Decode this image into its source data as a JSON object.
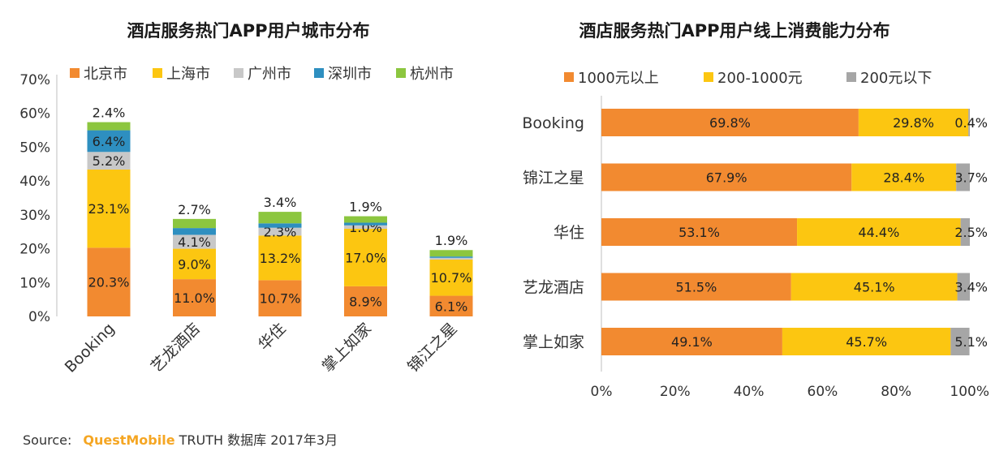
{
  "chart_data": [
    {
      "type": "bar",
      "stacked": true,
      "orientation": "vertical",
      "title": "酒店服务热门APP用户城市分布",
      "categories": [
        "Booking",
        "艺龙酒店",
        "华住",
        "掌上如家",
        "锦江之星"
      ],
      "series": [
        {
          "name": "北京市",
          "color": "#f28a30",
          "values": [
            20.3,
            11.0,
            10.7,
            8.9,
            6.1
          ],
          "labels": [
            "20.3%",
            "11.0%",
            "10.7%",
            "8.9%",
            "6.1%"
          ]
        },
        {
          "name": "上海市",
          "color": "#fcc611",
          "values": [
            23.1,
            9.0,
            13.2,
            17.0,
            10.7
          ],
          "labels": [
            "23.1%",
            "9.0%",
            "13.2%",
            "17.0%",
            "10.7%"
          ]
        },
        {
          "name": "广州市",
          "color": "#c8c8c8",
          "values": [
            5.2,
            4.1,
            2.3,
            1.0,
            0.5
          ],
          "labels": [
            "5.2%",
            "4.1%",
            "2.3%",
            "1.0%",
            ""
          ]
        },
        {
          "name": "深圳市",
          "color": "#2e8fc0",
          "values": [
            6.4,
            2.0,
            1.3,
            0.8,
            0.4
          ],
          "labels": [
            "6.4%",
            "",
            "",
            "",
            ""
          ]
        },
        {
          "name": "杭州市",
          "color": "#8cc63f",
          "values": [
            2.4,
            2.7,
            3.4,
            1.9,
            1.9
          ],
          "labels": [
            "2.4%",
            "2.7%",
            "3.4%",
            "1.9%",
            "1.9%"
          ]
        }
      ],
      "yticks": [
        "0%",
        "10%",
        "20%",
        "30%",
        "40%",
        "50%",
        "60%",
        "70%"
      ],
      "ylim": [
        0,
        70
      ],
      "legend": "top"
    },
    {
      "type": "bar",
      "stacked": true,
      "orientation": "horizontal",
      "title": "酒店服务热门APP用户线上消费能力分布",
      "categories": [
        "Booking",
        "锦江之星",
        "华住",
        "艺龙酒店",
        "掌上如家"
      ],
      "series": [
        {
          "name": "1000元以上",
          "color": "#f28a30",
          "values": [
            69.8,
            67.9,
            53.1,
            51.5,
            49.1
          ],
          "labels": [
            "69.8%",
            "67.9%",
            "53.1%",
            "51.5%",
            "49.1%"
          ]
        },
        {
          "name": "200-1000元",
          "color": "#fcc611",
          "values": [
            29.8,
            28.4,
            44.4,
            45.1,
            45.7
          ],
          "labels": [
            "29.8%",
            "28.4%",
            "44.4%",
            "45.1%",
            "45.7%"
          ]
        },
        {
          "name": "200元以下",
          "color": "#a6a6a6",
          "values": [
            0.4,
            3.7,
            2.5,
            3.4,
            5.1
          ],
          "labels": [
            "0.4%",
            "3.7%",
            "2.5%",
            "3.4%",
            "5.1%"
          ]
        }
      ],
      "xticks": [
        "0%",
        "20%",
        "40%",
        "60%",
        "80%",
        "100%"
      ],
      "xlim": [
        0,
        100
      ],
      "legend": "top"
    }
  ],
  "source": {
    "label": "Source:",
    "brand": "QuestMobile",
    "rest": " TRUTH 数据库 2017年3月"
  }
}
